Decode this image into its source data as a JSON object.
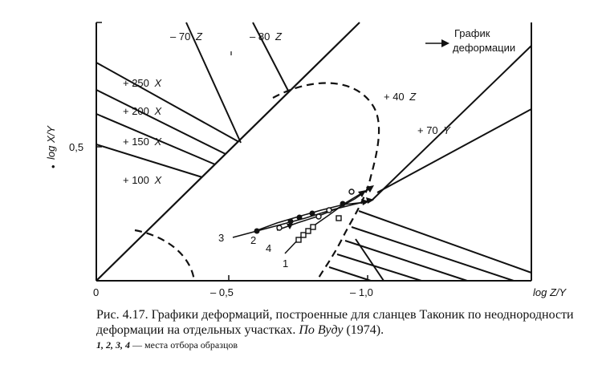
{
  "figure": {
    "y_axis_label": "log X/Y",
    "x_axis_label": "log Z/Y",
    "x_ticks": [
      "0",
      "– 0,5",
      "– 1,0"
    ],
    "y_ticks": [
      "0,5"
    ],
    "y_marker": "•",
    "top_labels": [
      "– 70",
      "– 80"
    ],
    "legend_arrow_text_1": "График",
    "legend_arrow_text_2": "деформации",
    "contour_labels": [
      {
        "value": "+ 250",
        "axis": "X"
      },
      {
        "value": "+ 200",
        "axis": "X"
      },
      {
        "value": "+ 150",
        "axis": "X"
      },
      {
        "value": "+ 100",
        "axis": "X"
      },
      {
        "value": "+ 40",
        "axis": "Z"
      },
      {
        "value": "+ 70",
        "axis": "Y"
      }
    ],
    "z_letter": "Z",
    "sample_labels": [
      "1",
      "2",
      "3",
      "4"
    ]
  },
  "caption": {
    "prefix": "Рис. 4.17. Графики деформаций, построенные для сланцев Таконик по неоднородности деформации на отдельных участках.",
    "author": "По Вуду",
    "year": "(1974).",
    "legend_numbers": "1, 2, 3, 4",
    "legend_text": "— места отбора образцов"
  }
}
